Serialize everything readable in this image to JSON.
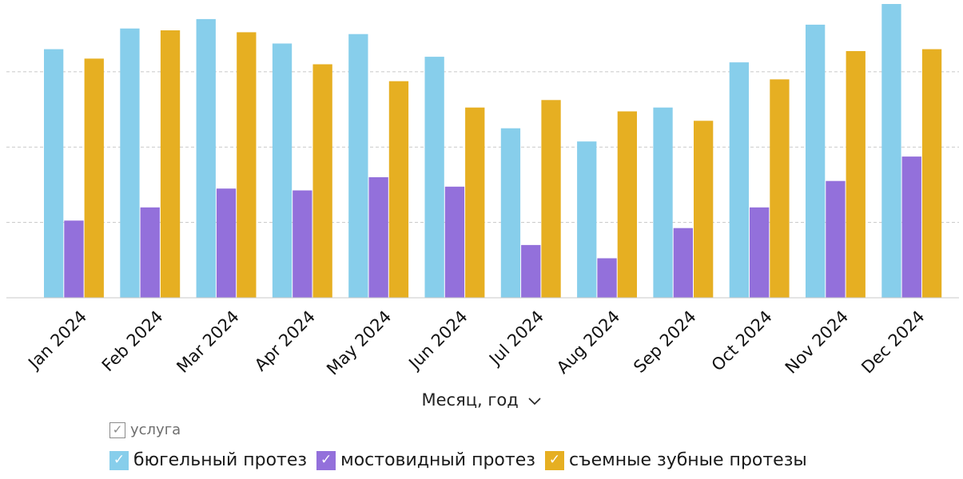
{
  "chart_data": {
    "type": "bar",
    "categories": [
      "Jan 2024",
      "Feb 2024",
      "Mar 2024",
      "Apr 2024",
      "May 2024",
      "Jun 2024",
      "Jul 2024",
      "Aug 2024",
      "Sep 2024",
      "Oct 2024",
      "Nov 2024",
      "Dec 2024"
    ],
    "series": [
      {
        "name": "бюгельный протез",
        "color": "#87CEEB",
        "values": [
          66,
          71.5,
          74,
          67.5,
          70,
          64,
          45,
          41.5,
          50.5,
          62.5,
          72.5,
          78
        ]
      },
      {
        "name": "мостовидный протез",
        "color": "#9370DB",
        "values": [
          20.5,
          24,
          29,
          28.5,
          32,
          29.5,
          14,
          10.5,
          18.5,
          24,
          31,
          37.5
        ]
      },
      {
        "name": "съемные зубные протезы",
        "color": "#E6AF22",
        "values": [
          63.5,
          71,
          70.5,
          62,
          57.5,
          50.5,
          52.5,
          49.5,
          47,
          58,
          65.5,
          66
        ]
      }
    ],
    "xlabel": "Месяц, год",
    "ylabel": "",
    "ylim": [
      0,
      78
    ],
    "gridlines": [
      20,
      40,
      60
    ],
    "grid": true,
    "legend_position": "bottom-left"
  },
  "x_axis": {
    "title": "Месяц, год",
    "dropdown_icon": "chevron-down-icon"
  },
  "legend": {
    "group_label": "услуга",
    "check_glyph": "✓"
  }
}
